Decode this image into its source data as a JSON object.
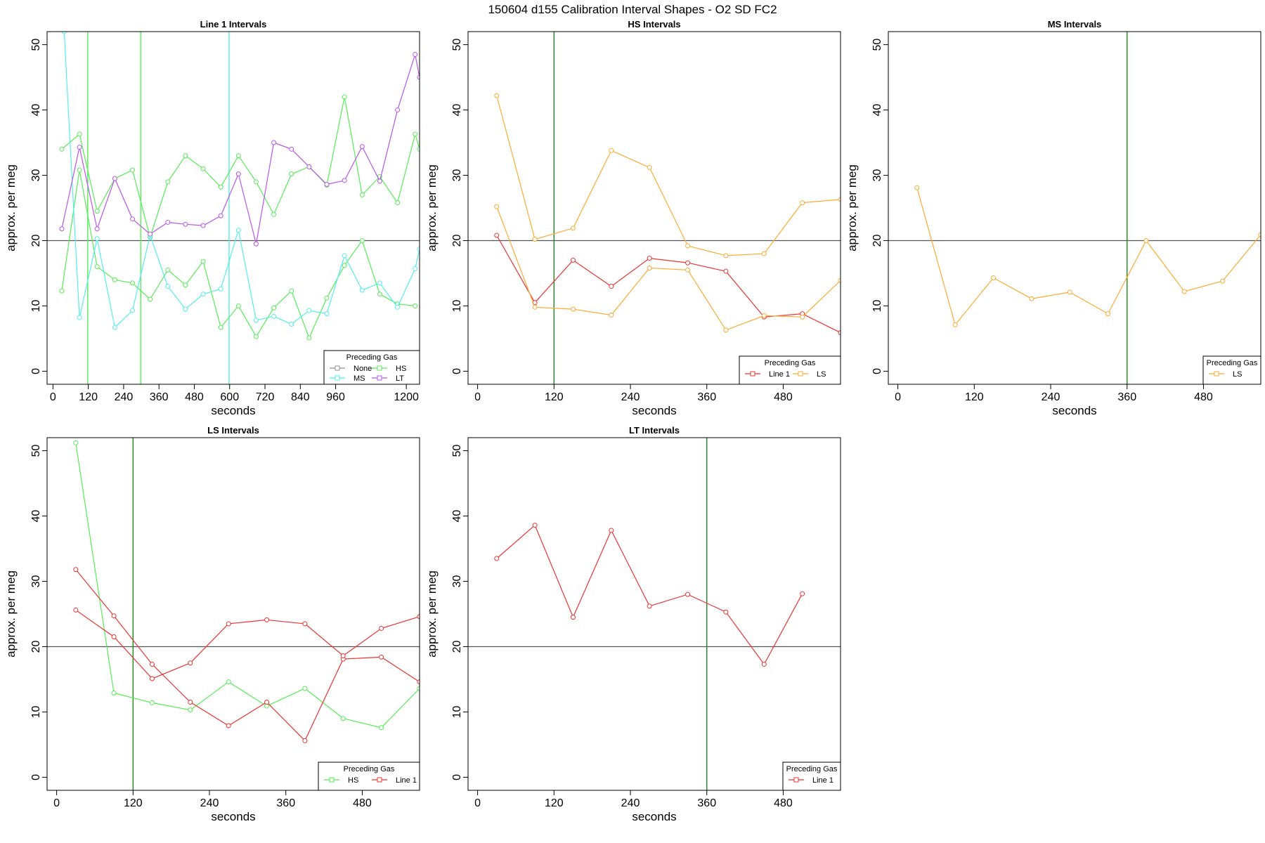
{
  "figure": {
    "title": "150604   d155   Calibration Interval Shapes - O2 SD FC2",
    "colors": {
      "None": "#909090",
      "HS": "#55ee55",
      "MS": "#55eeee",
      "LT": "#bb55ee",
      "Line 1": "#ee3333",
      "LS": "#ffaa33",
      "marker": "#228822",
      "ref": "#555555"
    }
  },
  "chart_data": [
    {
      "type": "line",
      "title": "Line 1 Intervals",
      "xlabel": "seconds",
      "ylabel": "approx. per meg",
      "xlim": [
        -20,
        1245
      ],
      "ylim": [
        -2,
        52
      ],
      "xticks": [
        0,
        120,
        240,
        360,
        480,
        600,
        720,
        840,
        960,
        1200
      ],
      "yticks": [
        0,
        10,
        20,
        30,
        40,
        50
      ],
      "hline": 20,
      "vlines": [
        {
          "x": 118,
          "gas": "HS"
        },
        {
          "x": 298,
          "gas": "HS"
        },
        {
          "x": 598,
          "gas": "MS"
        }
      ],
      "legend": {
        "title": "Preceding Gas",
        "position": "bottom-right",
        "entries": [
          "None",
          "HS",
          "MS",
          "LT"
        ],
        "columns": 2
      },
      "series": [
        {
          "name": "HS",
          "x": [
            30,
            90,
            150,
            210,
            270,
            330,
            390,
            450,
            510,
            570,
            630,
            690,
            750,
            810,
            870,
            930,
            990,
            1050,
            1110,
            1170,
            1230,
            1245
          ],
          "y": [
            34,
            36.3,
            24.5,
            29.5,
            30.8,
            20.5,
            29,
            33,
            31,
            28.2,
            33,
            29,
            24,
            30.2,
            31.3,
            28.5,
            42,
            27,
            29.8,
            25.8,
            36.3,
            34
          ]
        },
        {
          "name": "HS",
          "x": [
            30,
            90,
            150,
            210,
            270,
            330,
            390,
            450,
            510,
            570,
            630,
            690,
            750,
            810,
            870,
            930,
            990,
            1050,
            1110,
            1170,
            1230
          ],
          "y": [
            12.3,
            30.8,
            16,
            14,
            13.5,
            11,
            15.5,
            13.2,
            16.8,
            6.7,
            10,
            5.3,
            9.7,
            12.3,
            5.1,
            11.2,
            16.2,
            20,
            11.8,
            10.3,
            10
          ]
        },
        {
          "name": "MS",
          "x": [
            38,
            90,
            150,
            210,
            270,
            330,
            390,
            450,
            510,
            570,
            630,
            690,
            750,
            810,
            870,
            930,
            990,
            1050,
            1110,
            1170,
            1230,
            1245
          ],
          "y": [
            52,
            8.2,
            20.3,
            6.7,
            9.3,
            20.8,
            13,
            9.5,
            11.8,
            12.6,
            21.6,
            7.8,
            8.4,
            7.2,
            9.3,
            8.8,
            17.7,
            12.4,
            13.5,
            9.8,
            15.7,
            18.7
          ]
        },
        {
          "name": "LT",
          "x": [
            30,
            90,
            150,
            210,
            270,
            330,
            390,
            450,
            510,
            570,
            630,
            690,
            750,
            810,
            870,
            930,
            990,
            1050,
            1110,
            1170,
            1230,
            1245
          ],
          "y": [
            21.8,
            34.3,
            21.8,
            29.5,
            23.3,
            21,
            22.8,
            22.5,
            22.3,
            23.8,
            30.2,
            19.5,
            35,
            34,
            31.3,
            28.6,
            29.2,
            34.4,
            29.1,
            40,
            48.5,
            45
          ]
        }
      ]
    },
    {
      "type": "line",
      "title": "HS Intervals",
      "xlabel": "seconds",
      "ylabel": "approx. per meg",
      "xlim": [
        -15,
        570
      ],
      "ylim": [
        -2,
        52
      ],
      "xticks": [
        0,
        120,
        240,
        360,
        480
      ],
      "yticks": [
        0,
        10,
        20,
        30,
        40,
        50
      ],
      "hline": 20,
      "vlines": [
        {
          "x": 120,
          "gas": "HS"
        }
      ],
      "legend": {
        "title": "Preceding Gas",
        "position": "bottom-right",
        "entries": [
          "Line 1",
          "LS"
        ],
        "columns": 2
      },
      "series": [
        {
          "name": "Line 1",
          "x": [
            30,
            90,
            150,
            210,
            270,
            330,
            390,
            450,
            510,
            570
          ],
          "y": [
            20.8,
            10.5,
            17,
            13,
            17.3,
            16.6,
            15.3,
            8.3,
            8.8,
            5.9
          ]
        },
        {
          "name": "LS",
          "x": [
            30,
            90,
            150,
            210,
            270,
            330,
            390,
            450,
            510,
            570
          ],
          "y": [
            42.2,
            20.2,
            21.9,
            33.8,
            31.2,
            19.2,
            17.7,
            18,
            25.8,
            26.3
          ]
        },
        {
          "name": "LS",
          "x": [
            30,
            90,
            150,
            210,
            270,
            330,
            390,
            450,
            510,
            570
          ],
          "y": [
            25.2,
            9.8,
            9.5,
            8.6,
            15.8,
            15.5,
            6.3,
            8.5,
            8.3,
            13.9
          ]
        }
      ]
    },
    {
      "type": "line",
      "title": "MS Intervals",
      "xlabel": "seconds",
      "ylabel": "approx. per meg",
      "xlim": [
        -15,
        570
      ],
      "ylim": [
        -2,
        52
      ],
      "xticks": [
        0,
        120,
        240,
        360,
        480
      ],
      "yticks": [
        0,
        10,
        20,
        30,
        40,
        50
      ],
      "hline": 20,
      "vlines": [
        {
          "x": 360,
          "gas": "HS"
        }
      ],
      "legend": {
        "title": "Preceding Gas",
        "position": "bottom-right",
        "entries": [
          "LS"
        ],
        "columns": 1
      },
      "series": [
        {
          "name": "LS",
          "x": [
            30,
            90,
            150,
            210,
            270,
            330,
            390,
            450,
            510,
            570
          ],
          "y": [
            28.1,
            7.1,
            14.3,
            11.1,
            12.1,
            8.8,
            20,
            12.2,
            13.8,
            20.9
          ]
        }
      ]
    },
    {
      "type": "line",
      "title": "LS Intervals",
      "xlabel": "seconds",
      "ylabel": "approx. per meg",
      "xlim": [
        -15,
        570
      ],
      "ylim": [
        -2,
        52
      ],
      "xticks": [
        0,
        120,
        240,
        360,
        480
      ],
      "yticks": [
        0,
        10,
        20,
        30,
        40,
        50
      ],
      "hline": 20,
      "vlines": [
        {
          "x": 120,
          "gas": "HS"
        }
      ],
      "legend": {
        "title": "Preceding Gas",
        "position": "bottom-right",
        "entries": [
          "HS",
          "Line 1"
        ],
        "columns": 2
      },
      "series": [
        {
          "name": "HS",
          "x": [
            30,
            90,
            150,
            210,
            270,
            330,
            390,
            450,
            510,
            570
          ],
          "y": [
            51.2,
            12.9,
            11.4,
            10.3,
            14.6,
            10.9,
            13.6,
            9,
            7.6,
            13.6
          ]
        },
        {
          "name": "Line 1",
          "x": [
            30,
            90,
            150,
            210,
            270,
            330,
            390,
            450,
            510,
            570
          ],
          "y": [
            31.8,
            24.7,
            17.3,
            11.5,
            7.9,
            11.5,
            5.6,
            18.1,
            18.4,
            14.6
          ]
        },
        {
          "name": "Line 1",
          "x": [
            30,
            90,
            150,
            210,
            270,
            330,
            390,
            450,
            510,
            570
          ],
          "y": [
            25.6,
            21.5,
            15.1,
            17.5,
            23.5,
            24.1,
            23.5,
            18.6,
            22.8,
            24.6
          ]
        }
      ]
    },
    {
      "type": "line",
      "title": "LT Intervals",
      "xlabel": "seconds",
      "ylabel": "approx. per meg",
      "xlim": [
        -15,
        570
      ],
      "ylim": [
        -2,
        52
      ],
      "xticks": [
        0,
        120,
        240,
        360,
        480
      ],
      "yticks": [
        0,
        10,
        20,
        30,
        40,
        50
      ],
      "hline": 20,
      "vlines": [
        {
          "x": 360,
          "gas": "HS"
        }
      ],
      "legend": {
        "title": "Preceding Gas",
        "position": "bottom-right",
        "entries": [
          "Line 1"
        ],
        "columns": 1
      },
      "series": [
        {
          "name": "Line 1",
          "x": [
            30,
            90,
            150,
            210,
            270,
            330,
            390,
            450,
            510
          ],
          "y": [
            33.5,
            38.6,
            24.5,
            37.8,
            26.2,
            28,
            25.3,
            17.3,
            28.1
          ]
        }
      ]
    }
  ]
}
